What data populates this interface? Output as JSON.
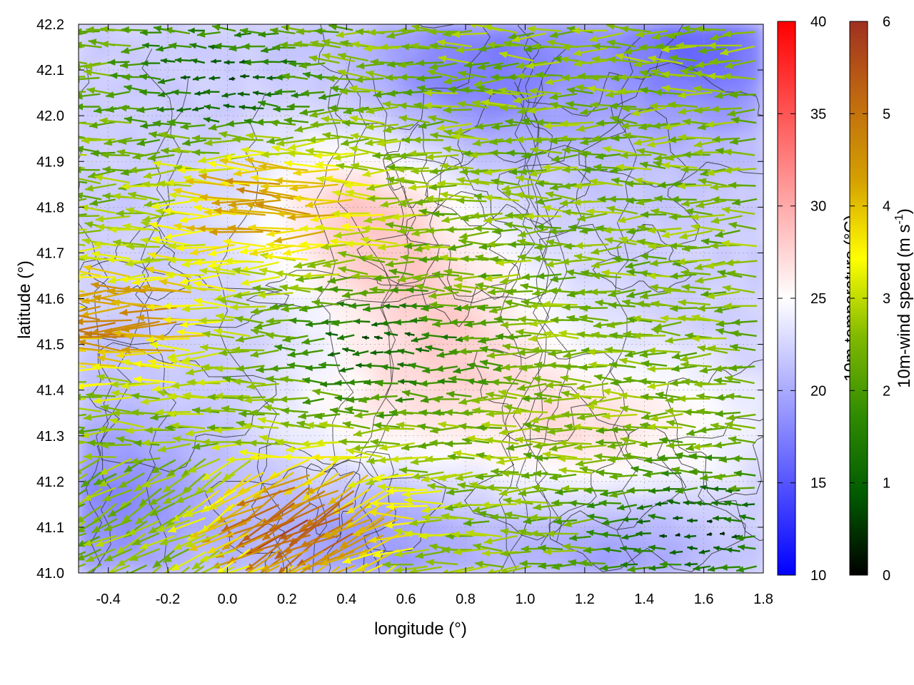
{
  "chart_data": {
    "type": "heatmap",
    "overlays": [
      "wind-vectors",
      "contour-lines"
    ],
    "xlabel": "longitude (°)",
    "ylabel": "latitude (°)",
    "xlim": [
      -0.5,
      1.8
    ],
    "ylim": [
      41.0,
      42.2
    ],
    "x_ticks": [
      "-0.4",
      "-0.2",
      "0.0",
      "0.2",
      "0.4",
      "0.6",
      "0.8",
      "1.0",
      "1.2",
      "1.4",
      "1.6",
      "1.8"
    ],
    "y_ticks": [
      "41.0",
      "41.1",
      "41.2",
      "41.3",
      "41.4",
      "41.5",
      "41.6",
      "41.7",
      "41.8",
      "41.9",
      "42.0",
      "42.1",
      "42.2"
    ],
    "grid": true,
    "colorbars": [
      {
        "label": "10m-temperature (°C)",
        "range": [
          10,
          40
        ],
        "ticks": [
          "10",
          "15",
          "20",
          "25",
          "30",
          "35",
          "40"
        ],
        "colors": [
          "#0000ff",
          "#ffffff",
          "#ff0000"
        ]
      },
      {
        "label": "10m-wind speed (m s-1)",
        "label_main": "10m-wind speed (m s",
        "label_exp": "-1",
        "label_end": ")",
        "range": [
          0,
          6
        ],
        "ticks": [
          "0",
          "1",
          "2",
          "3",
          "4",
          "5",
          "6"
        ],
        "colors": [
          "#000000",
          "#005a00",
          "#2e8b00",
          "#7fb800",
          "#ffff00",
          "#d4a000",
          "#c06a10",
          "#a03020"
        ]
      }
    ],
    "temperature_background": {
      "base": 22,
      "warm_regions": [
        {
          "lon": 0.45,
          "lat": 41.78,
          "value": 28
        },
        {
          "lon": 0.75,
          "lat": 41.55,
          "value": 27
        },
        {
          "lon": 1.1,
          "lat": 41.3,
          "value": 26
        },
        {
          "lon": 0.5,
          "lat": 41.3,
          "value": 26
        },
        {
          "lon": 1.5,
          "lat": 41.3,
          "value": 25
        }
      ],
      "cool_regions": [
        {
          "lon": 1.6,
          "lat": 42.15,
          "value": 16
        },
        {
          "lon": 0.85,
          "lat": 42.1,
          "value": 17
        },
        {
          "lon": -0.4,
          "lat": 41.15,
          "value": 18
        },
        {
          "lon": 0.5,
          "lat": 41.1,
          "value": 18
        },
        {
          "lon": 1.3,
          "lat": 41.05,
          "value": 19
        }
      ]
    },
    "wind_field": {
      "direction": "mostly westward (from east)",
      "typical_speed": 2.5,
      "max_speed": 5.8,
      "strong_zones": [
        {
          "lon": -0.3,
          "lat": 41.55,
          "speed": 4.8
        },
        {
          "lon": 0.2,
          "lat": 41.8,
          "speed": 4.5
        },
        {
          "lon": 0.3,
          "lat": 41.12,
          "speed": 5.6
        }
      ],
      "calm_zones": [
        {
          "lon": 1.6,
          "lat": 41.1,
          "speed": 0.7
        },
        {
          "lon": 0.0,
          "lat": 42.08,
          "speed": 0.8
        },
        {
          "lon": 0.55,
          "lat": 41.5,
          "speed": 0.9
        }
      ]
    }
  }
}
